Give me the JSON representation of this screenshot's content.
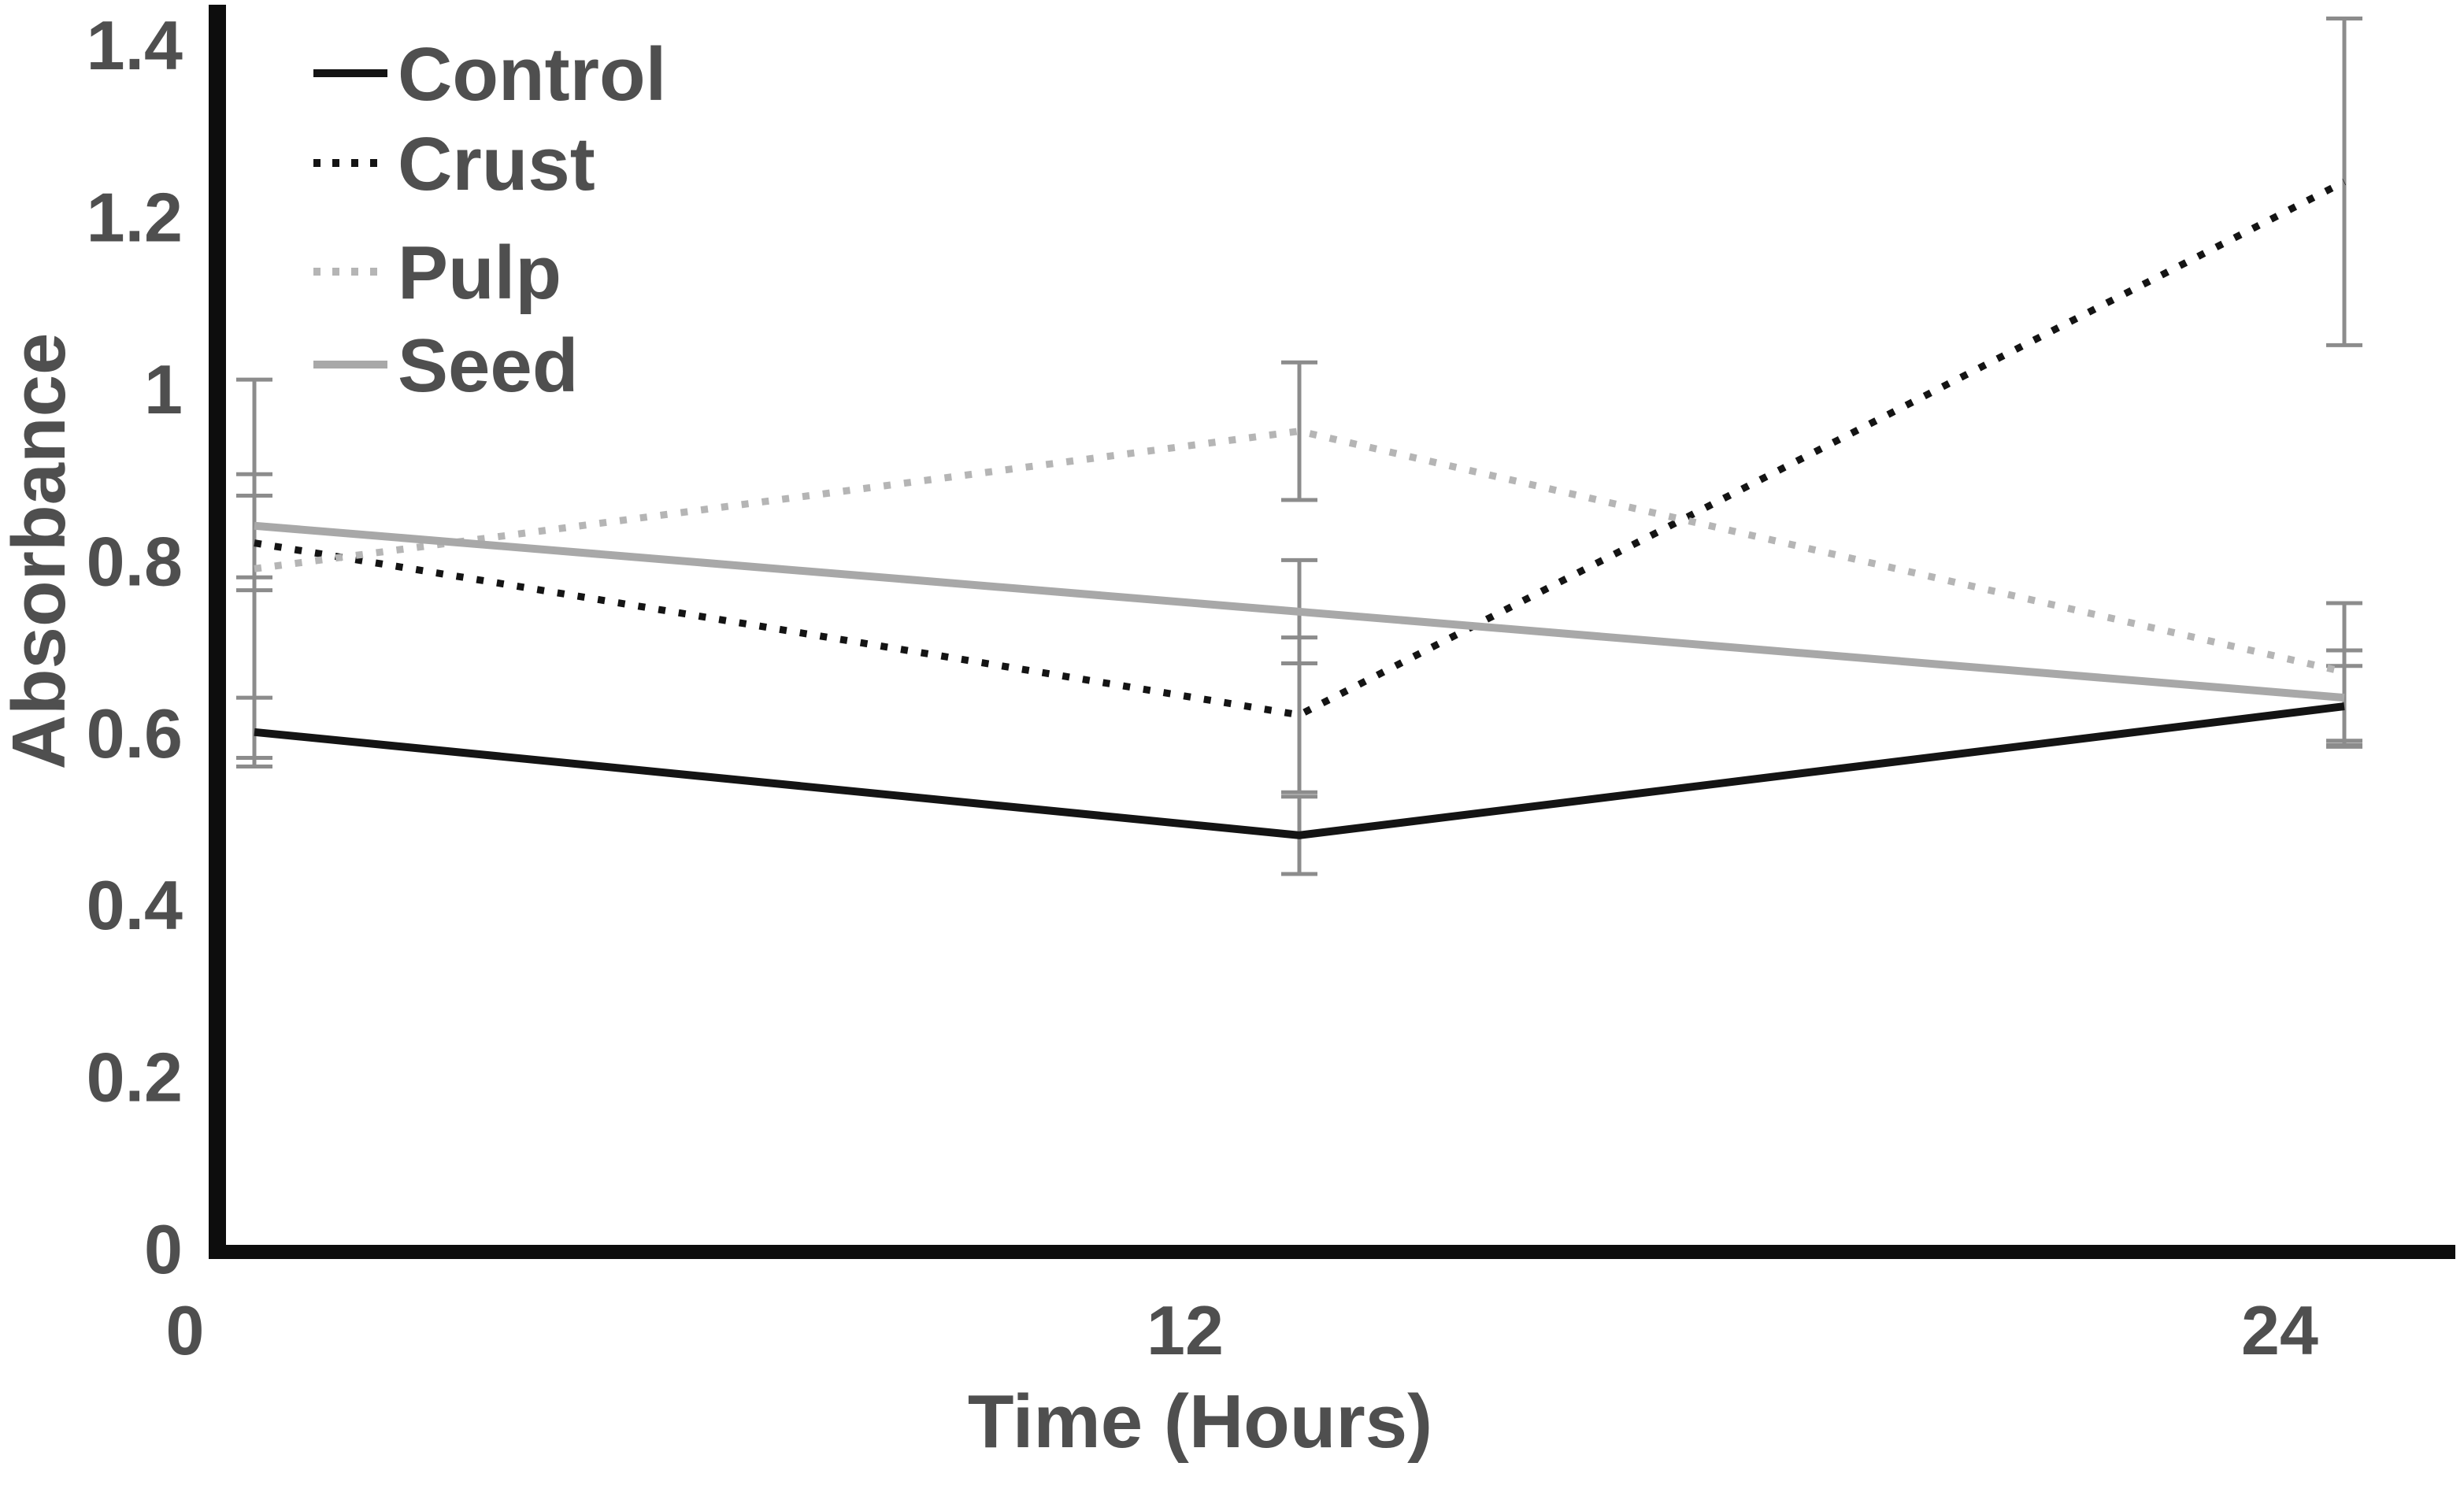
{
  "figure": {
    "background": "#ffffff"
  },
  "chart_data": {
    "type": "line",
    "title": "",
    "xlabel": "Time (Hours)",
    "ylabel": "Absorbance",
    "x": [
      0,
      12,
      24
    ],
    "x_tick_labels": [
      "0",
      "12",
      "24"
    ],
    "y_tick_labels": [
      "0",
      "0.2",
      "0.4",
      "0.6",
      "0.8",
      "1",
      "1.2",
      "1.4"
    ],
    "ylim": [
      0,
      1.4
    ],
    "grid": false,
    "error_bars": true,
    "legend": {
      "position": "top-left-inside",
      "entries": [
        "Control",
        "Crust",
        "Pulp",
        "Seed"
      ]
    },
    "series": [
      {
        "name": "Control",
        "line_style": "solid",
        "color": "#141414",
        "values": [
          0.6,
          0.48,
          0.63
        ],
        "errors": [
          0.04,
          0.045,
          0.047
        ]
      },
      {
        "name": "Crust",
        "line_style": "dotted",
        "color": "#141414",
        "values": [
          0.82,
          0.62,
          1.24
        ],
        "errors": [
          0.055,
          0.09,
          0.19
        ]
      },
      {
        "name": "Pulp",
        "line_style": "dotted",
        "color": "#b5b5b5",
        "values": [
          0.79,
          0.95,
          0.67
        ],
        "errors": [
          0.22,
          0.08,
          0.08
        ]
      },
      {
        "name": "Seed",
        "line_style": "solid",
        "color": "#a8a8a8",
        "values": [
          0.84,
          0.74,
          0.64
        ],
        "errors": [
          0.06,
          0.06,
          0.055
        ]
      }
    ],
    "error_bar_color": "#8c8c8c",
    "axis_color": "#0d0d0d",
    "text_color": "#4f4f4f"
  }
}
